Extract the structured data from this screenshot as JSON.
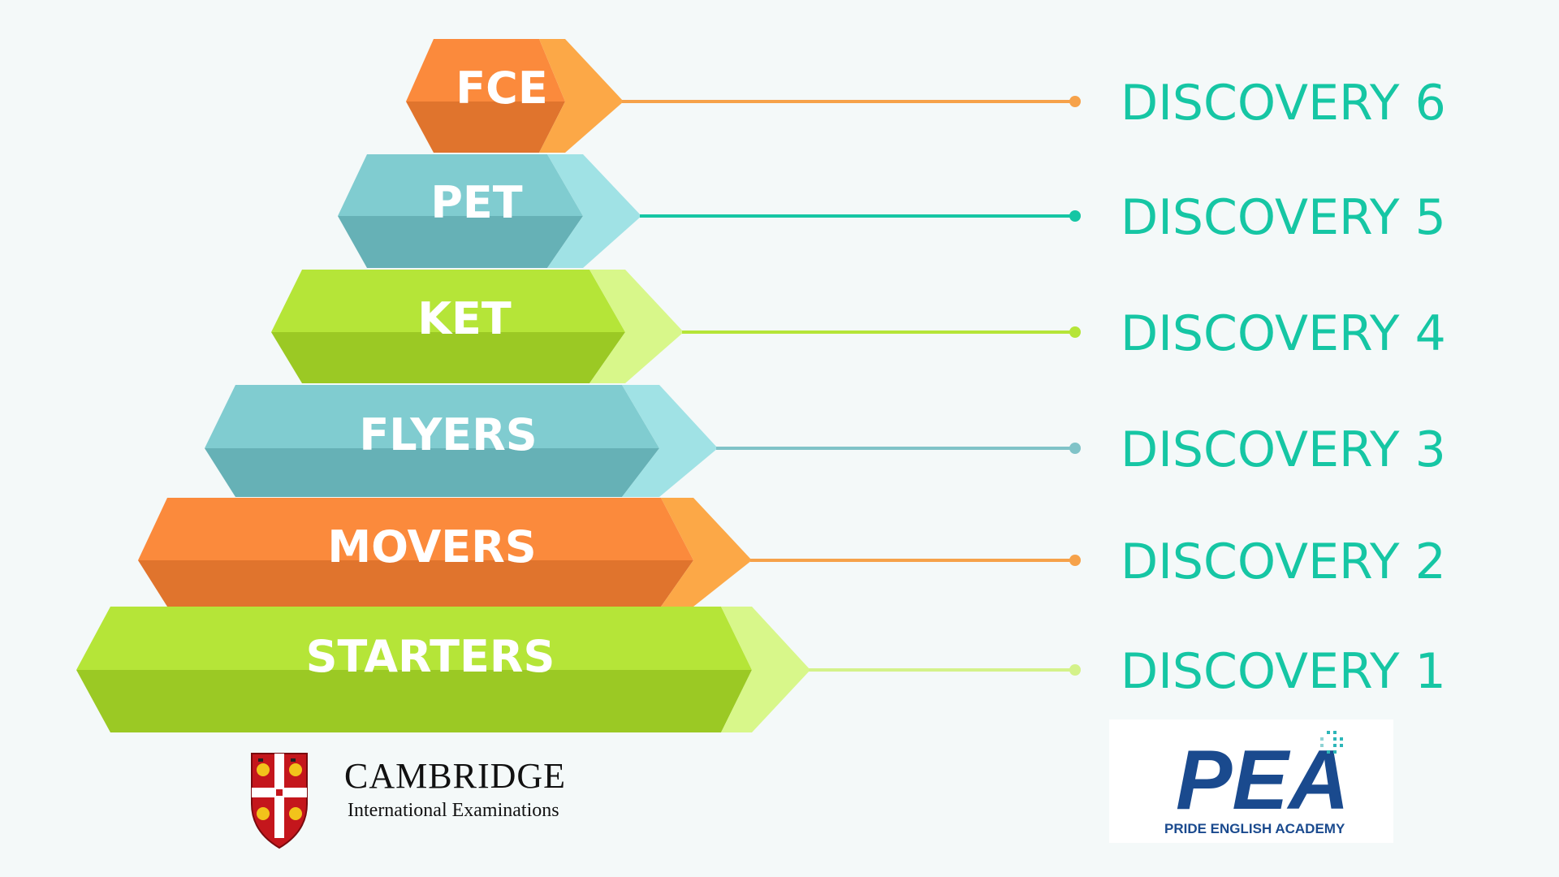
{
  "tiers": [
    {
      "label": "FCE",
      "discovery": "DISCOVERY 6",
      "color_light": "#fb8a3c",
      "color_dark": "#e0742d",
      "color_side": "#fca847",
      "dot_color": "#f6a24a"
    },
    {
      "label": "PET",
      "discovery": "DISCOVERY 5",
      "color_light": "#80ccd0",
      "color_dark": "#66b1b6",
      "color_side": "#a0e2e5",
      "dot_color": "#16c6a4"
    },
    {
      "label": "KET",
      "discovery": "DISCOVERY 4",
      "color_light": "#b5e538",
      "color_dark": "#9bc924",
      "color_side": "#d8f78a",
      "dot_color": "#b5e538"
    },
    {
      "label": "FLYERS",
      "discovery": "DISCOVERY 3",
      "color_light": "#80ccd0",
      "color_dark": "#66b1b6",
      "color_side": "#a0e2e5",
      "dot_color": "#80c3c8"
    },
    {
      "label": "MOVERS",
      "discovery": "DISCOVERY 2",
      "color_light": "#fb8a3c",
      "color_dark": "#e0742d",
      "color_side": "#fca847",
      "dot_color": "#f6a24a"
    },
    {
      "label": "STARTERS",
      "discovery": "DISCOVERY 1",
      "color_light": "#b5e538",
      "color_dark": "#9bc924",
      "color_side": "#d8f78a",
      "dot_color": "#d4f28a"
    }
  ],
  "cambridge": {
    "name": "CAMBRIDGE",
    "subtitle": "International Examinations"
  },
  "pea": {
    "mark": "PEA",
    "subtitle": "PRIDE ENGLISH ACADEMY",
    "color": "#1a4a8e"
  }
}
